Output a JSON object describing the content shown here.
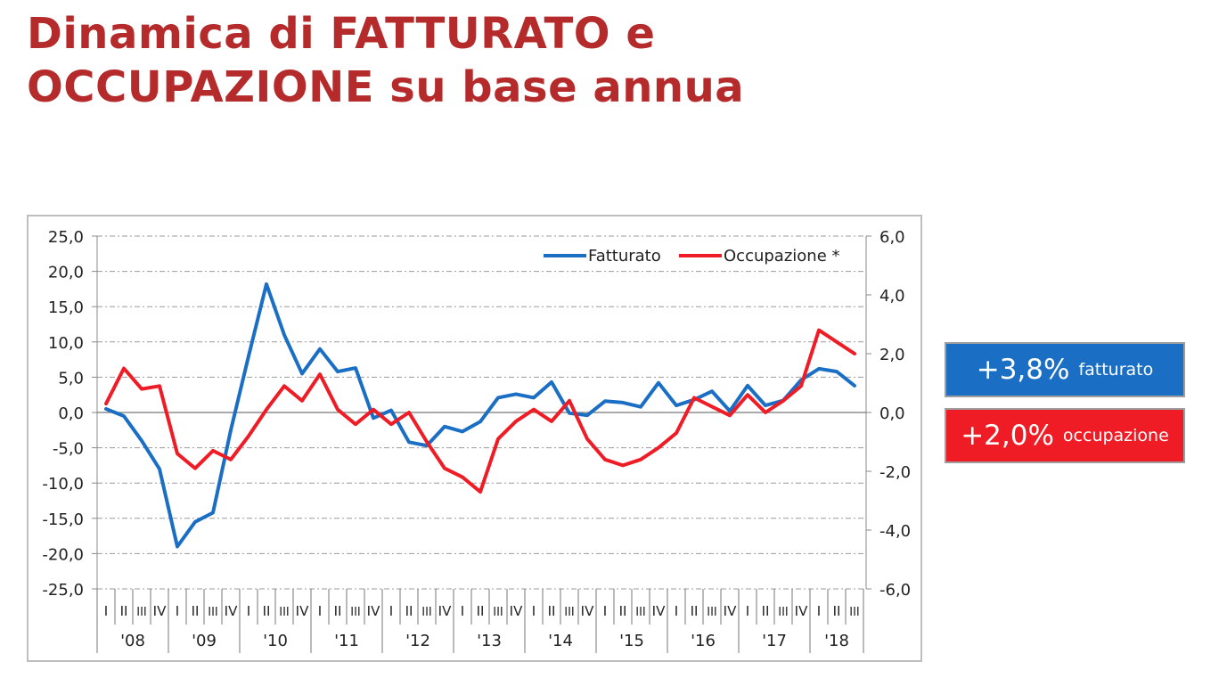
{
  "header": {
    "title_line1": "Dinamica di FATTURATO e",
    "title_line2": "OCCUPAZIONE su base annua"
  },
  "callouts": {
    "fatturato_value": "+3,8%",
    "fatturato_label": "fatturato",
    "occupazione_value": "+2,0%",
    "occupazione_label": "occupazione"
  },
  "colors": {
    "title": "#b52a2a",
    "fatturato": "#1a6fc4",
    "occupazione": "#ef1c25"
  },
  "chart_data": {
    "type": "line",
    "title": "",
    "xlabel": "",
    "ylabel": "",
    "y2label": "",
    "grid": true,
    "legend_position": "top-right",
    "quarter_labels": [
      "I",
      "II",
      "III",
      "IV"
    ],
    "years": [
      "'08",
      "'09",
      "'10",
      "'11",
      "'12",
      "'13",
      "'14",
      "'15",
      "'16",
      "'17",
      "'18"
    ],
    "categories": [
      "I '08",
      "II '08",
      "III '08",
      "IV '08",
      "I '09",
      "II '09",
      "III '09",
      "IV '09",
      "I '10",
      "II '10",
      "III '10",
      "IV '10",
      "I '11",
      "II '11",
      "III '11",
      "IV '11",
      "I '12",
      "II '12",
      "III '12",
      "IV '12",
      "I '13",
      "II '13",
      "III '13",
      "IV '13",
      "I '14",
      "II '14",
      "III '14",
      "IV '14",
      "I '15",
      "II '15",
      "III '15",
      "IV '15",
      "I '16",
      "II '16",
      "III '16",
      "IV '16",
      "I '17",
      "II '17",
      "III '17",
      "IV '17",
      "I '18",
      "II '18",
      "III '18"
    ],
    "y_left": {
      "ylim": [
        -25,
        25
      ],
      "ticks": [
        "25,0",
        "20,0",
        "15,0",
        "10,0",
        "5,0",
        "0,0",
        "-5,0",
        "-10,0",
        "-15,0",
        "-20,0",
        "-25,0"
      ]
    },
    "y_right": {
      "ylim": [
        -6,
        6
      ],
      "ticks": [
        "6,0",
        "4,0",
        "2,0",
        "0,0",
        "-2,0",
        "-4,0",
        "-6,0"
      ]
    },
    "series": [
      {
        "name": "Fatturato",
        "axis": "left",
        "color": "#1a6fc4",
        "values": [
          0.5,
          -0.5,
          -4.0,
          -8.0,
          -19.0,
          -15.5,
          -14.2,
          -2.5,
          8.0,
          18.2,
          11.0,
          5.5,
          9.0,
          5.8,
          6.3,
          -0.8,
          0.3,
          -4.2,
          -4.7,
          -2.0,
          -2.7,
          -1.3,
          2.1,
          2.6,
          2.1,
          4.3,
          -0.1,
          -0.4,
          1.6,
          1.4,
          0.8,
          4.2,
          1.0,
          1.8,
          3.0,
          0.2,
          3.8,
          1.0,
          1.7,
          4.6,
          6.2,
          5.8,
          3.8
        ]
      },
      {
        "name": "Occupazione *",
        "axis": "right",
        "color": "#ef1c25",
        "values": [
          0.3,
          1.5,
          0.8,
          0.9,
          -1.4,
          -1.9,
          -1.3,
          -1.6,
          -0.8,
          0.1,
          0.9,
          0.4,
          1.3,
          0.1,
          -0.4,
          0.1,
          -0.4,
          0.0,
          -1.0,
          -1.9,
          -2.2,
          -2.7,
          -0.9,
          -0.3,
          0.1,
          -0.3,
          0.4,
          -0.9,
          -1.6,
          -1.8,
          -1.6,
          -1.2,
          -0.7,
          0.5,
          0.2,
          -0.1,
          0.6,
          0.0,
          0.4,
          0.9,
          2.8,
          2.4,
          2.0
        ]
      }
    ]
  }
}
